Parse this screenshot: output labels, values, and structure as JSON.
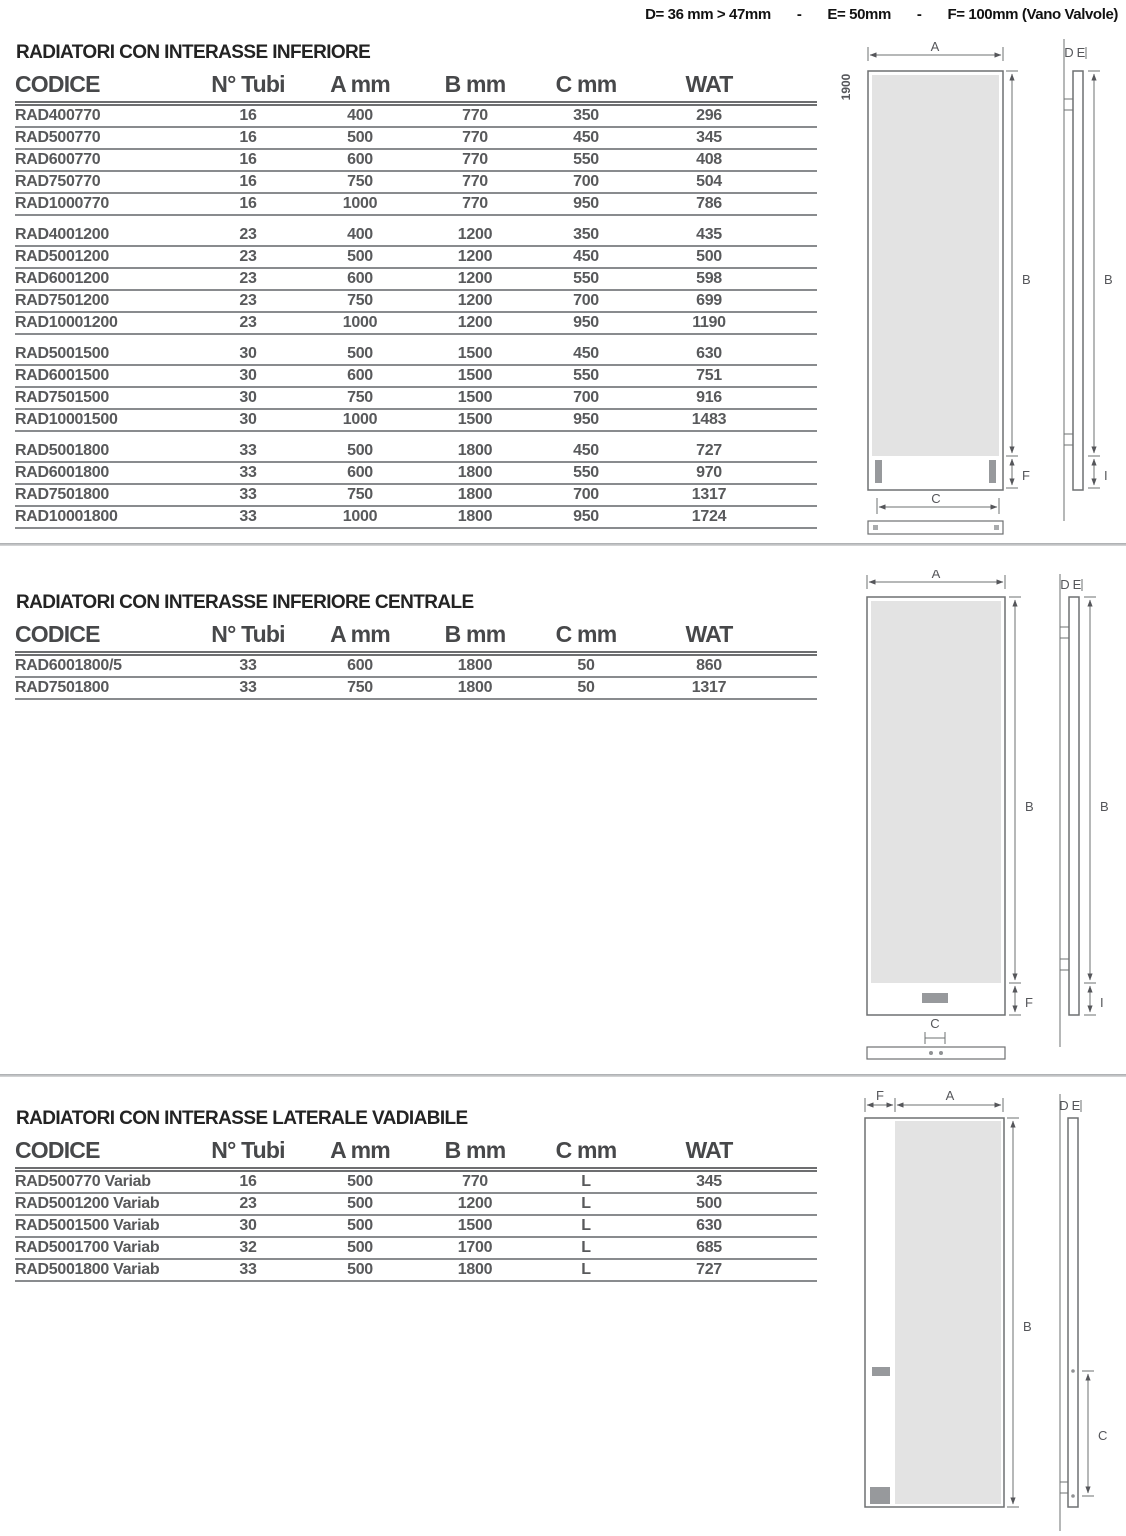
{
  "header_legend": {
    "items": [
      "D= 36 mm > 47mm",
      "-",
      "E= 50mm",
      "-",
      "F= 100mm (Vano Valvole)"
    ]
  },
  "tables": [
    {
      "title": "RADIATORI CON INTERASSE INFERIORE",
      "columns": [
        "CODICE",
        "N° Tubi",
        "A mm",
        "B mm",
        "C mm",
        "WAT"
      ],
      "groups": [
        [
          [
            "RAD400770",
            "16",
            "400",
            "770",
            "350",
            "296"
          ],
          [
            "RAD500770",
            "16",
            "500",
            "770",
            "450",
            "345"
          ],
          [
            "RAD600770",
            "16",
            "600",
            "770",
            "550",
            "408"
          ],
          [
            "RAD750770",
            "16",
            "750",
            "770",
            "700",
            "504"
          ],
          [
            "RAD1000770",
            "16",
            "1000",
            "770",
            "950",
            "786"
          ]
        ],
        [
          [
            "RAD4001200",
            "23",
            "400",
            "1200",
            "350",
            "435"
          ],
          [
            "RAD5001200",
            "23",
            "500",
            "1200",
            "450",
            "500"
          ],
          [
            "RAD6001200",
            "23",
            "600",
            "1200",
            "550",
            "598"
          ],
          [
            "RAD7501200",
            "23",
            "750",
            "1200",
            "700",
            "699"
          ],
          [
            "RAD10001200",
            "23",
            "1000",
            "1200",
            "950",
            "1190"
          ]
        ],
        [
          [
            "RAD5001500",
            "30",
            "500",
            "1500",
            "450",
            "630"
          ],
          [
            "RAD6001500",
            "30",
            "600",
            "1500",
            "550",
            "751"
          ],
          [
            "RAD7501500",
            "30",
            "750",
            "1500",
            "700",
            "916"
          ],
          [
            "RAD10001500",
            "30",
            "1000",
            "1500",
            "950",
            "1483"
          ]
        ],
        [
          [
            "RAD5001800",
            "33",
            "500",
            "1800",
            "450",
            "727"
          ],
          [
            "RAD6001800",
            "33",
            "600",
            "1800",
            "550",
            "970"
          ],
          [
            "RAD7501800",
            "33",
            "750",
            "1800",
            "700",
            "1317"
          ],
          [
            "RAD10001800",
            "33",
            "1000",
            "1800",
            "950",
            "1724"
          ]
        ]
      ]
    },
    {
      "title": "RADIATORI CON INTERASSE INFERIORE CENTRALE",
      "columns": [
        "CODICE",
        "N° Tubi",
        "A mm",
        "B mm",
        "C mm",
        "WAT"
      ],
      "groups": [
        [
          [
            "RAD6001800/5",
            "33",
            "600",
            "1800",
            "50",
            "860"
          ],
          [
            "RAD7501800",
            "33",
            "750",
            "1800",
            "50",
            "1317"
          ]
        ]
      ]
    },
    {
      "title": "RADIATORI CON INTERASSE LATERALE VADIABILE",
      "columns": [
        "CODICE",
        "N° Tubi",
        "A mm",
        "B mm",
        "C mm",
        "WAT"
      ],
      "groups": [
        [
          [
            "RAD500770 Variab",
            "16",
            "500",
            "770",
            "L",
            "345"
          ],
          [
            "RAD5001200 Variab",
            "23",
            "500",
            "1200",
            "L",
            "500"
          ],
          [
            "RAD5001500 Variab",
            "30",
            "500",
            "1500",
            "L",
            "630"
          ],
          [
            "RAD5001700 Variab",
            "32",
            "500",
            "1700",
            "L",
            "685"
          ],
          [
            "RAD5001800 Variab",
            "33",
            "500",
            "1800",
            "L",
            "727"
          ]
        ]
      ]
    }
  ],
  "diagram_labels": {
    "a": "A",
    "b": "B",
    "c": "C",
    "d": "D",
    "e": "E",
    "f": "F",
    "i": "I",
    "total_height": "1900"
  },
  "colors": {
    "panel_fill": "#e3e3e3",
    "connector_gray": "#97999c",
    "line_gray": "#6e7072",
    "text_gray": "#58595b",
    "title_black": "#232323"
  }
}
